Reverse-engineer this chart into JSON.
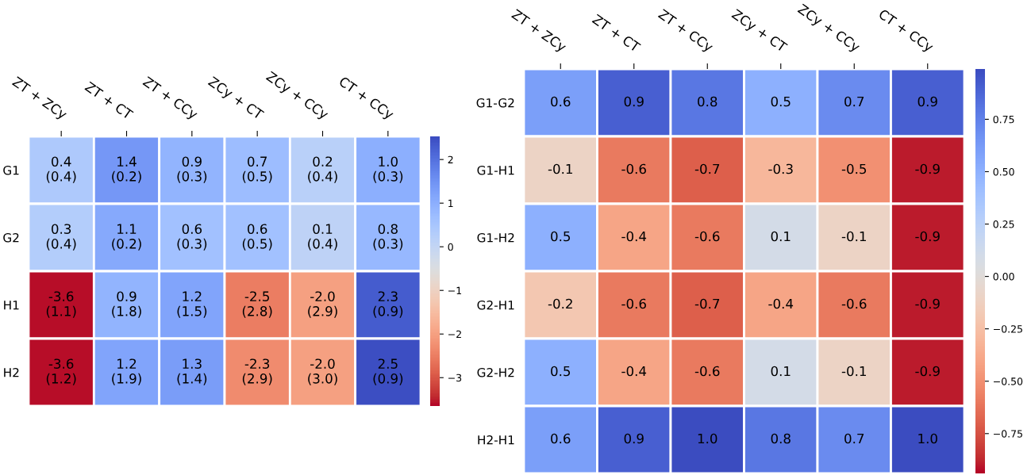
{
  "chart_data": [
    {
      "type": "heatmap",
      "categories": [
        "ZT + ZCy",
        "ZT + CT",
        "ZT + CCy",
        "ZCy + CT",
        "ZCy + CCy",
        "CT + CCy"
      ],
      "y_categories": [
        "G1",
        "G2",
        "H1",
        "H2"
      ],
      "cells": [
        [
          0.4,
          1.4,
          0.9,
          0.7,
          0.2,
          1.0
        ],
        [
          0.3,
          1.1,
          0.6,
          0.6,
          0.1,
          0.8
        ],
        [
          -3.6,
          0.9,
          1.2,
          -2.5,
          -2.0,
          2.3
        ],
        [
          -3.6,
          1.2,
          1.3,
          -2.3,
          -2.0,
          2.5
        ]
      ],
      "cell_labels": [
        [
          "0.4\n(0.4)",
          "1.4\n(0.2)",
          "0.9\n(0.3)",
          "0.7\n(0.5)",
          "0.2\n(0.4)",
          "1.0\n(0.3)"
        ],
        [
          "0.3\n(0.4)",
          "1.1\n(0.2)",
          "0.6\n(0.3)",
          "0.6\n(0.5)",
          "0.1\n(0.4)",
          "0.8\n(0.3)"
        ],
        [
          "-3.6\n(1.1)",
          "0.9\n(1.8)",
          "1.2\n(1.5)",
          "-2.5\n(2.8)",
          "-2.0\n(2.9)",
          "2.3\n(0.9)"
        ],
        [
          "-3.6\n(1.2)",
          "1.2\n(1.9)",
          "1.3\n(1.4)",
          "-2.3\n(2.9)",
          "-2.0\n(3.0)",
          "2.5\n(0.9)"
        ]
      ],
      "clim": [
        -3.65,
        2.53
      ],
      "cticks": [
        -3,
        -2,
        -1,
        0,
        1,
        2
      ]
    },
    {
      "type": "heatmap",
      "categories": [
        "ZT + ZCy",
        "ZT + CT",
        "ZT + CCy",
        "ZCy + CT",
        "ZCy + CCy",
        "CT + CCy"
      ],
      "y_categories": [
        "G1-G2",
        "G1-H1",
        "G1-H2",
        "G2-H1",
        "G2-H2",
        "H2-H1"
      ],
      "cells": [
        [
          0.6,
          0.9,
          0.8,
          0.5,
          0.7,
          0.9
        ],
        [
          -0.1,
          -0.6,
          -0.7,
          -0.3,
          -0.5,
          -0.9
        ],
        [
          0.5,
          -0.4,
          -0.6,
          0.1,
          -0.1,
          -0.9
        ],
        [
          -0.2,
          -0.6,
          -0.7,
          -0.4,
          -0.6,
          -0.9
        ],
        [
          0.5,
          -0.4,
          -0.6,
          0.1,
          -0.1,
          -0.9
        ],
        [
          0.6,
          0.9,
          1.0,
          0.8,
          0.7,
          1.0
        ]
      ],
      "cell_labels": [
        [
          "0.6",
          "0.9",
          "0.8",
          "0.5",
          "0.7",
          "0.9"
        ],
        [
          "-0.1",
          "-0.6",
          "-0.7",
          "-0.3",
          "-0.5",
          "-0.9"
        ],
        [
          "0.5",
          "-0.4",
          "-0.6",
          "0.1",
          "-0.1",
          "-0.9"
        ],
        [
          "-0.2",
          "-0.6",
          "-0.7",
          "-0.4",
          "-0.6",
          "-0.9"
        ],
        [
          "0.5",
          "-0.4",
          "-0.6",
          "0.1",
          "-0.1",
          "-0.9"
        ],
        [
          "0.6",
          "0.9",
          "1.0",
          "0.8",
          "0.7",
          "1.0"
        ]
      ],
      "clim": [
        -0.94,
        0.99
      ],
      "cticks": [
        {
          "value": -0.75,
          "label": "−0.75"
        },
        {
          "value": -0.5,
          "label": "−0.50"
        },
        {
          "value": -0.25,
          "label": "−0.25"
        },
        {
          "value": 0,
          "label": "0.00"
        },
        {
          "value": 0.25,
          "label": "0.25"
        },
        {
          "value": 0.5,
          "label": "0.50"
        },
        {
          "value": 0.75,
          "label": "0.75"
        }
      ]
    }
  ]
}
